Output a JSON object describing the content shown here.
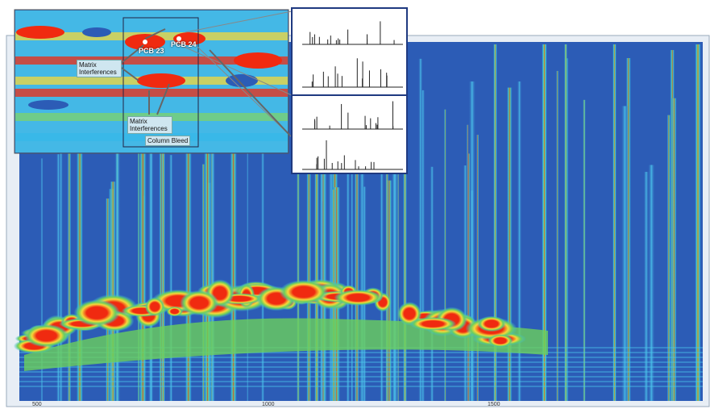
{
  "annotations": {
    "pcb_23": "PCB 23",
    "pcb_24": "PCB 24",
    "matrix_interferences_1": "Matrix Interferences",
    "matrix_interferences_2": "Matrix Interferences",
    "column_bleed": "Column Bleed"
  },
  "x_axis": {
    "ticks": [
      "500",
      "1000",
      "1500"
    ]
  }
}
